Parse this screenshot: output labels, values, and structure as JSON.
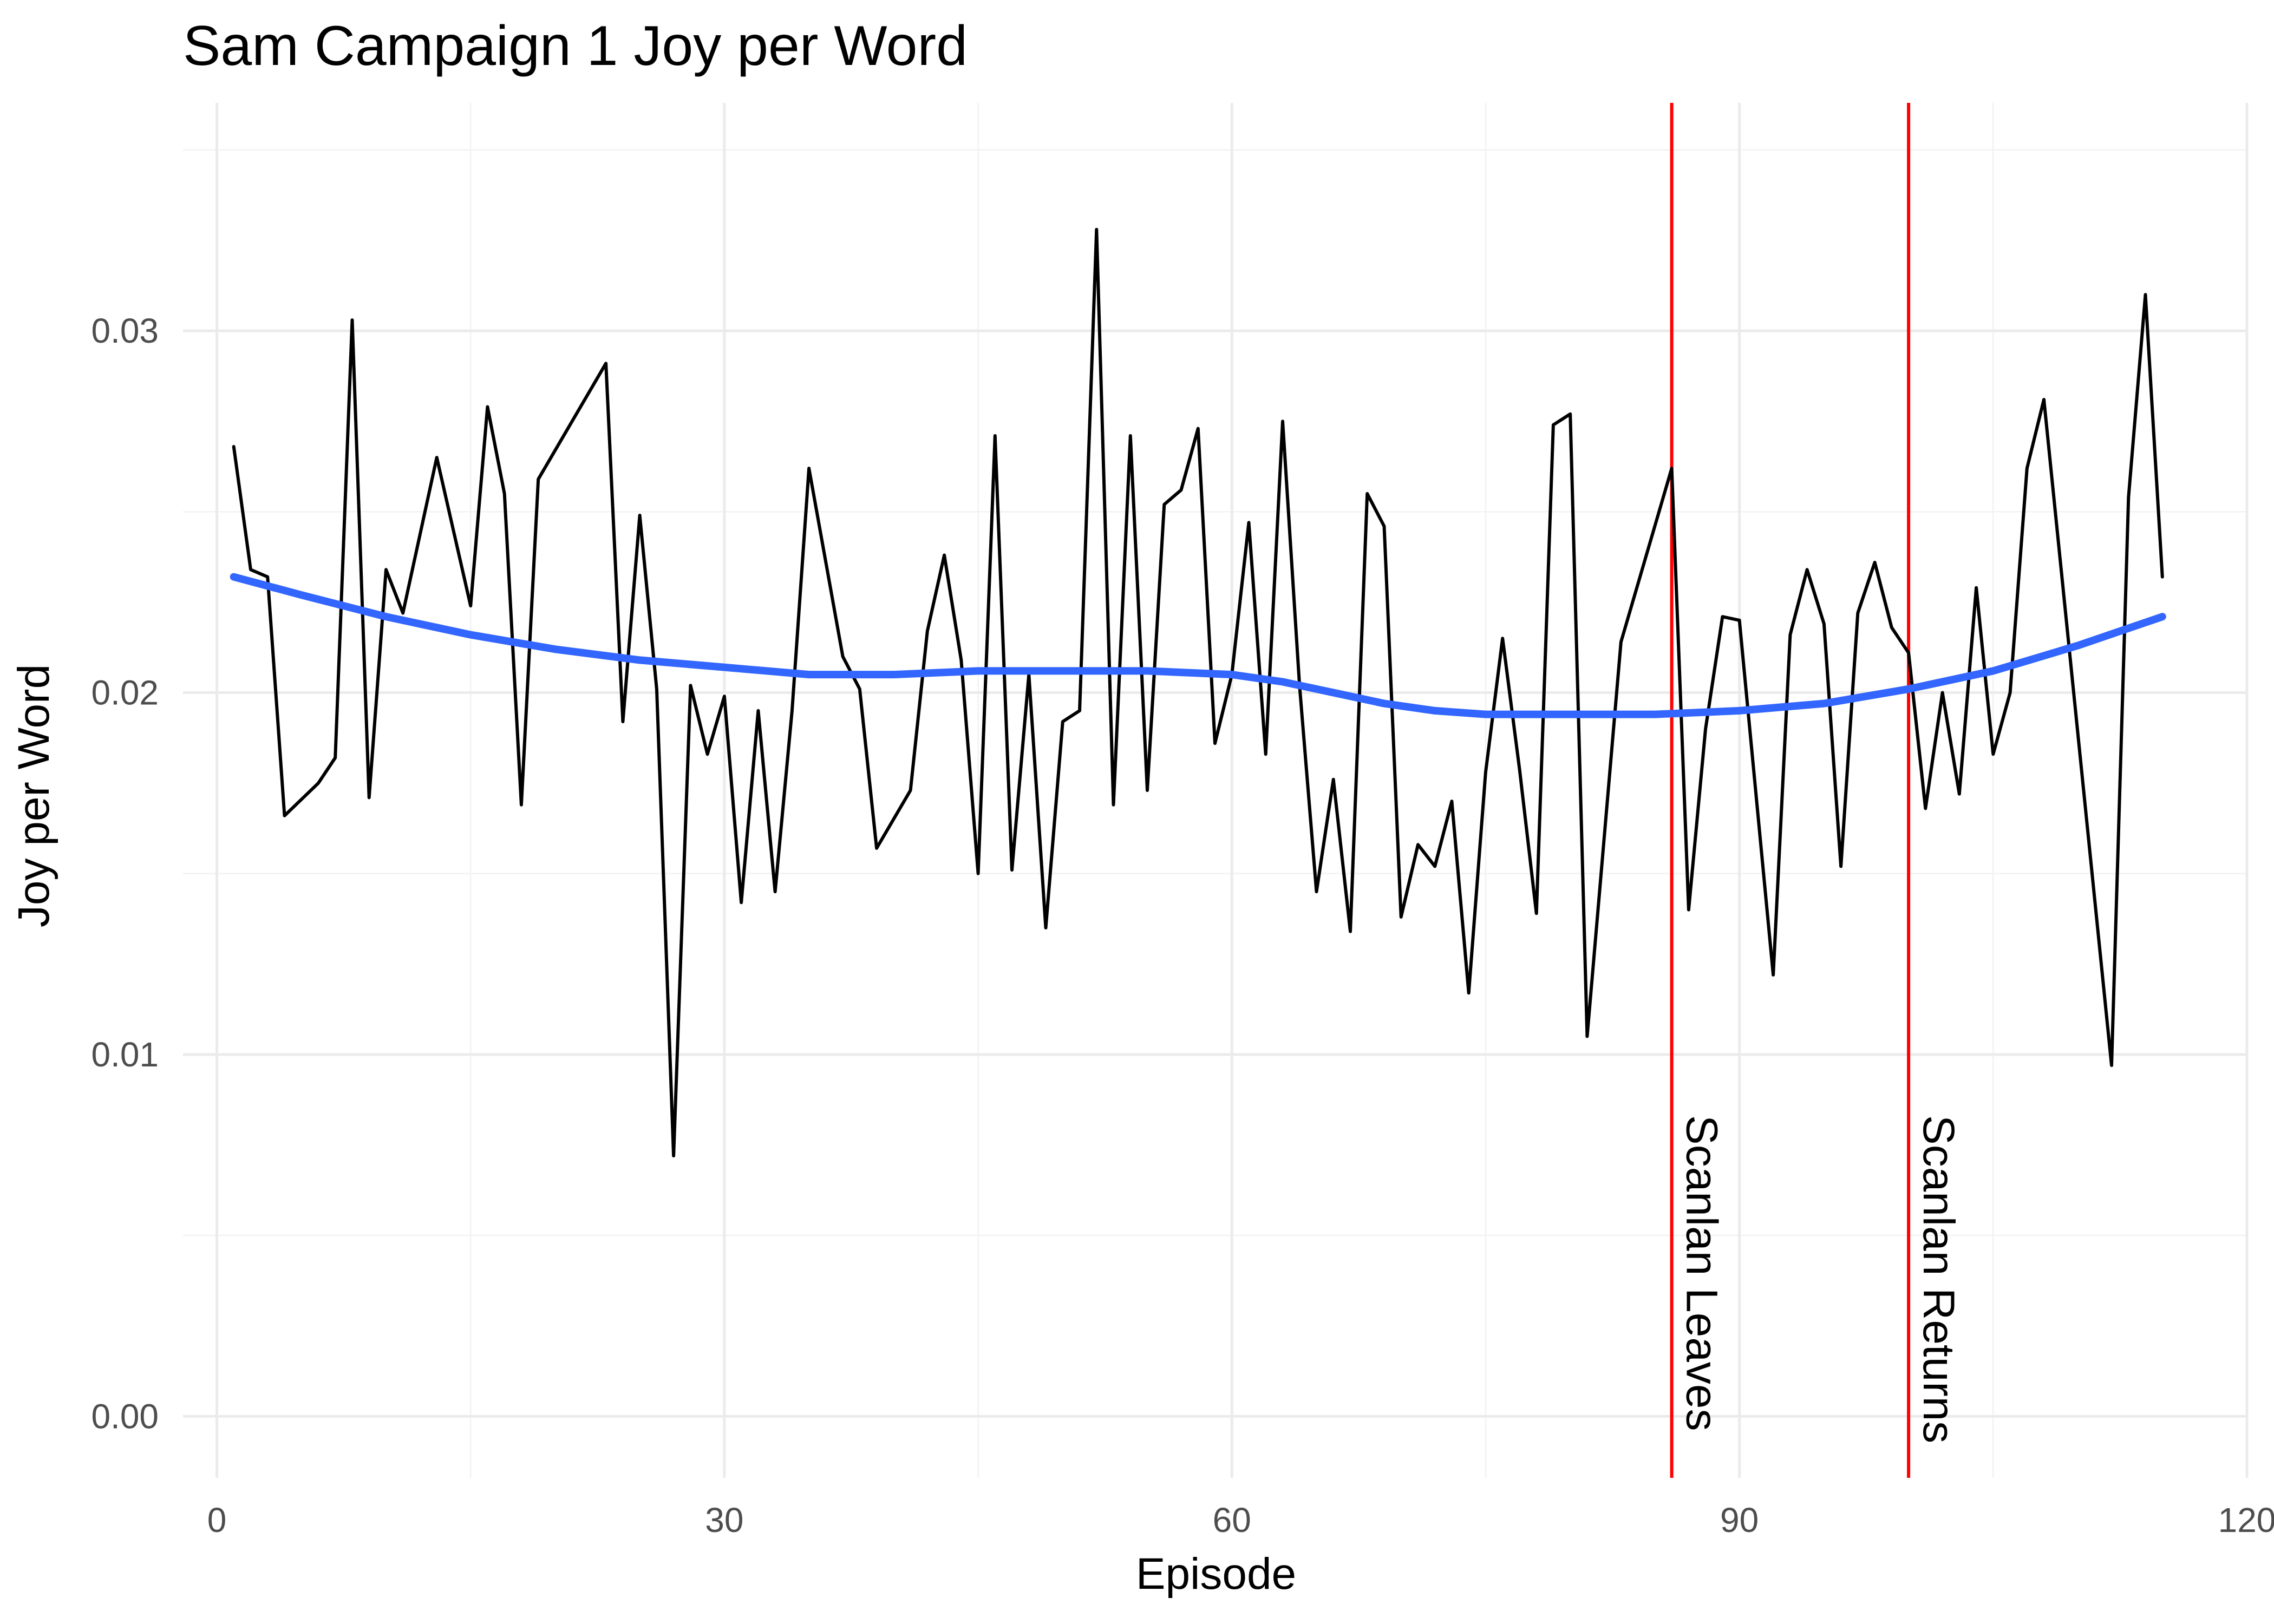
{
  "chart_data": {
    "type": "line",
    "title": "Sam Campaign 1 Joy per Word",
    "xlabel": "Episode",
    "ylabel": "Joy per Word",
    "xlim": [
      -2,
      120
    ],
    "ylim": [
      -0.0017,
      0.0363
    ],
    "x_ticks": [
      0,
      30,
      60,
      90,
      120
    ],
    "x_tick_labels": [
      "0",
      "30",
      "60",
      "90",
      "120"
    ],
    "y_ticks": [
      0.0,
      0.01,
      0.02,
      0.03
    ],
    "y_tick_labels": [
      "0.00",
      "0.01",
      "0.02",
      "0.03"
    ],
    "grid": true,
    "legend": "none",
    "colors": {
      "series": "#000000",
      "smooth": "#3366ff",
      "vline": "#ff0000"
    },
    "series": [
      {
        "x": [
          1,
          2,
          3,
          4,
          6,
          7,
          8,
          9,
          10,
          11,
          13,
          15,
          16,
          17,
          18,
          19,
          23,
          24,
          25,
          26,
          27,
          28,
          29,
          30,
          31,
          32,
          33,
          34,
          35,
          37,
          38,
          39,
          41,
          42,
          43,
          44,
          45,
          46,
          47,
          48,
          49,
          50,
          51,
          52,
          53,
          54,
          55,
          56,
          57,
          58,
          59,
          60,
          61,
          62,
          63,
          64,
          65,
          66,
          67,
          68,
          69,
          70,
          71,
          72,
          73,
          74,
          75,
          76,
          77,
          78,
          79,
          80,
          81,
          83,
          86,
          87,
          88,
          89,
          90,
          92,
          93,
          94,
          95,
          96,
          97,
          98,
          99,
          100,
          101,
          102,
          103,
          104,
          105,
          106,
          107,
          108,
          112,
          113,
          114,
          115
        ],
        "y": [
          0.0268,
          0.0234,
          0.0232,
          0.0166,
          0.0175,
          0.0182,
          0.0303,
          0.0171,
          0.0234,
          0.0222,
          0.0265,
          0.0224,
          0.0279,
          0.0255,
          0.0169,
          0.0259,
          0.0291,
          0.0192,
          0.0249,
          0.0201,
          0.0072,
          0.0202,
          0.0183,
          0.0199,
          0.0142,
          0.0195,
          0.0145,
          0.0195,
          0.0262,
          0.021,
          0.0201,
          0.0157,
          0.0173,
          0.0217,
          0.0238,
          0.0209,
          0.015,
          0.0271,
          0.0151,
          0.0205,
          0.0135,
          0.0192,
          0.0195,
          0.0328,
          0.0169,
          0.0271,
          0.0173,
          0.0252,
          0.0256,
          0.0273,
          0.0186,
          0.0205,
          0.0247,
          0.0183,
          0.0275,
          0.0202,
          0.0145,
          0.0176,
          0.0134,
          0.0255,
          0.0246,
          0.0138,
          0.0158,
          0.0152,
          0.017,
          0.0117,
          0.0178,
          0.0215,
          0.0179,
          0.0139,
          0.0274,
          0.0277,
          0.0105,
          0.0214,
          0.0262,
          0.014,
          0.019,
          0.0221,
          0.022,
          0.0122,
          0.0216,
          0.0234,
          0.0219,
          0.0152,
          0.0222,
          0.0236,
          0.0218,
          0.0211,
          0.0168,
          0.02,
          0.0172,
          0.0229,
          0.0183,
          0.02,
          0.0262,
          0.0281,
          0.0097,
          0.0254,
          0.031,
          0.0232
        ]
      },
      {
        "x": [
          1,
          5,
          10,
          15,
          20,
          25,
          30,
          35,
          40,
          45,
          50,
          55,
          60,
          63,
          66,
          69,
          72,
          75,
          80,
          85,
          90,
          95,
          100,
          105,
          110,
          115
        ],
        "y": [
          0.0232,
          0.0227,
          0.0221,
          0.0216,
          0.0212,
          0.0209,
          0.0207,
          0.0205,
          0.0205,
          0.0206,
          0.0206,
          0.0206,
          0.0205,
          0.0203,
          0.02,
          0.0197,
          0.0195,
          0.0194,
          0.0194,
          0.0194,
          0.0195,
          0.0197,
          0.0201,
          0.0206,
          0.0213,
          0.0221
        ]
      }
    ],
    "vlines": [
      {
        "x": 86,
        "label": "Scanlan Leaves"
      },
      {
        "x": 100,
        "label": "Scanlan Returns"
      }
    ]
  }
}
